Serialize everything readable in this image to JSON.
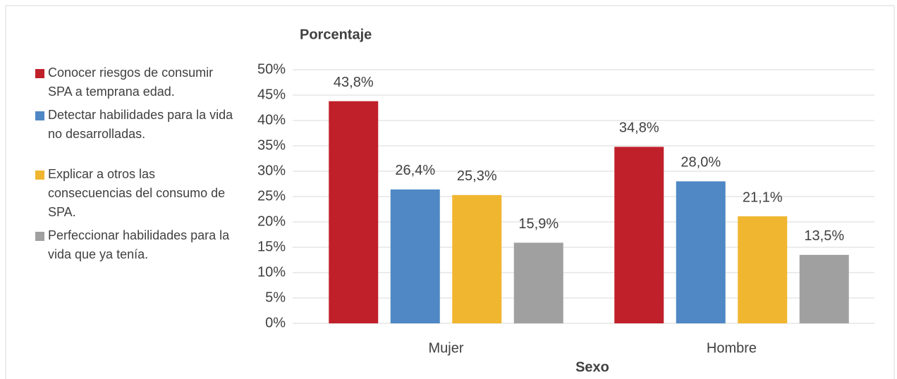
{
  "chart_data": {
    "type": "bar",
    "title": "Porcentaje",
    "x_label": "Sexo",
    "categories": [
      "Mujer",
      "Hombre"
    ],
    "series": [
      {
        "name": "Conocer riesgos de consumir SPA a temprana edad.",
        "color": "#c0202a",
        "values": [
          43.8,
          34.8
        ],
        "value_labels": [
          "43,8%",
          "34,8%"
        ]
      },
      {
        "name": "Detectar habilidades para la vida no desarrolladas.",
        "color": "#4f88c4",
        "values": [
          26.4,
          28.0
        ],
        "value_labels": [
          "26,4%",
          "28,0%"
        ]
      },
      {
        "name": "Explicar a otros las consecuencias del consumo de SPA.",
        "color": "#f0b630",
        "values": [
          25.3,
          21.1
        ],
        "value_labels": [
          "25,3%",
          "21,1%"
        ]
      },
      {
        "name": "Perfeccionar habilidades para la vida que ya tenía.",
        "color": "#a0a0a0",
        "values": [
          15.9,
          13.5
        ],
        "value_labels": [
          "15,9%",
          "13,5%"
        ]
      }
    ],
    "ylim": [
      0,
      50
    ],
    "yticks": [
      {
        "value": 0,
        "label": "0%"
      },
      {
        "value": 5,
        "label": "5%"
      },
      {
        "value": 10,
        "label": "10%"
      },
      {
        "value": 15,
        "label": "15%"
      },
      {
        "value": 20,
        "label": "20%"
      },
      {
        "value": 25,
        "label": "25%"
      },
      {
        "value": 30,
        "label": "30%"
      },
      {
        "value": 35,
        "label": "35%"
      },
      {
        "value": 40,
        "label": "40%"
      },
      {
        "value": 45,
        "label": "45%"
      },
      {
        "value": 50,
        "label": "50%"
      }
    ],
    "grid": true,
    "legend": "left"
  }
}
